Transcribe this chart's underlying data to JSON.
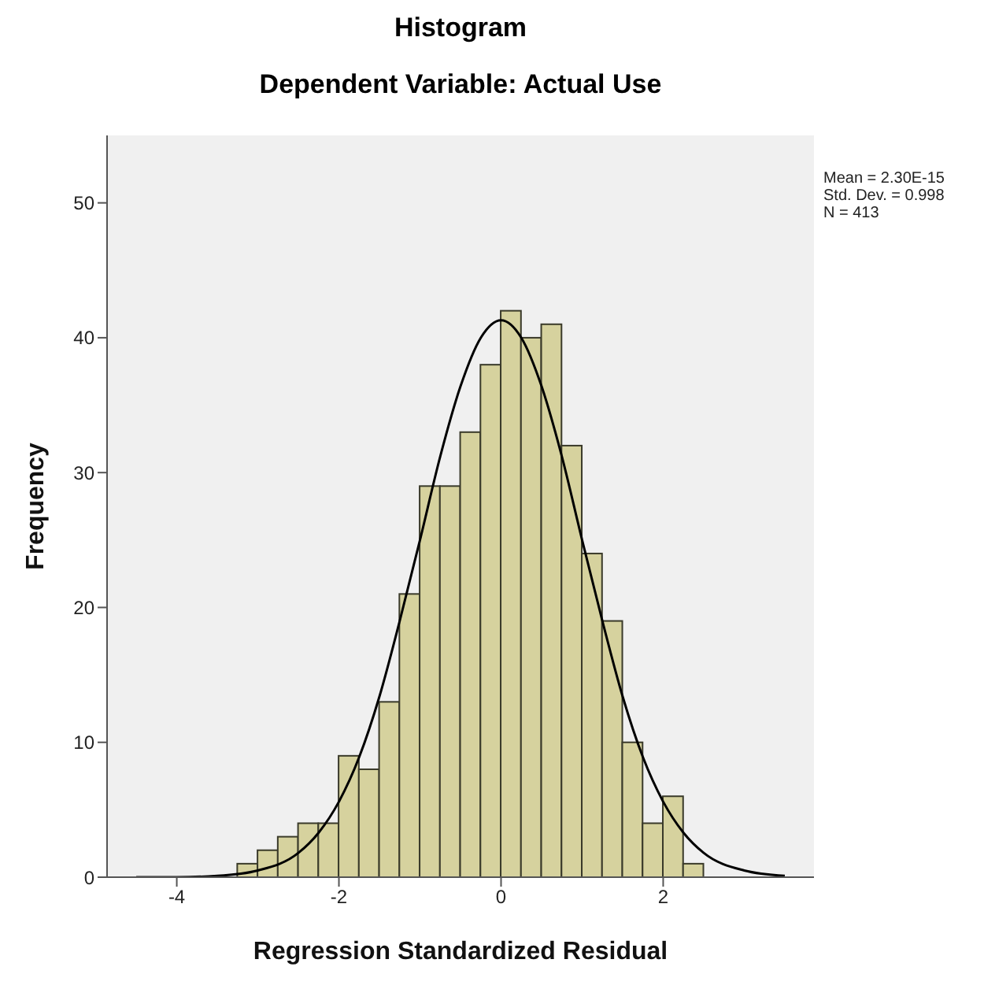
{
  "chart_data": {
    "type": "histogram",
    "title": "Histogram",
    "subtitle": "Dependent Variable: Actual Use",
    "xlabel": "Regression Standardized Residual",
    "ylabel": "Frequency",
    "annotations": [
      "Mean = 2.30E-15\nStd. Dev. = 0.998\nN = 413"
    ],
    "xlim": [
      -4.86,
      3.86
    ],
    "xticks": [
      -4,
      -2,
      0,
      2
    ],
    "ylim": [
      0,
      55
    ],
    "yticks": [
      0,
      10,
      20,
      30,
      40,
      50
    ],
    "series": [
      {
        "color": "#d6d29e",
        "bins": [
          -3.25,
          -3,
          -2.75,
          -2.5,
          -2.25,
          -2,
          -1.75,
          -1.5,
          -1.25,
          -1,
          -0.75,
          -0.5,
          -0.25,
          0,
          0.25,
          0.5,
          0.75,
          1,
          1.25,
          1.5,
          1.75,
          2,
          2.25,
          2.5
        ],
        "values": [
          1,
          2,
          3,
          4,
          4,
          9,
          8,
          13,
          21,
          29,
          29,
          33,
          38,
          42,
          40,
          41,
          32,
          24,
          19,
          10,
          4,
          6,
          1
        ]
      },
      {
        "type": "line",
        "color": "#000000",
        "marker": "none",
        "x": [
          -4.5,
          -4,
          -3.5,
          -3,
          -2.5,
          -2.25,
          -2,
          -1.75,
          -1.5,
          -1.25,
          -1,
          -0.75,
          -0.5,
          -0.25,
          0,
          0.25,
          0.5,
          0.75,
          1,
          1.25,
          1.5,
          1.75,
          2,
          2.25,
          2.5,
          3,
          3.5
        ],
        "values": [
          0,
          0,
          0.1,
          0.5,
          1.8,
          3.3,
          5.6,
          8.9,
          13.4,
          19,
          25,
          31.2,
          36.4,
          40,
          41.3,
          40,
          36.4,
          31.2,
          25,
          19,
          13.4,
          8.9,
          5.6,
          3.3,
          1.8,
          0.5,
          0.1
        ]
      }
    ]
  }
}
